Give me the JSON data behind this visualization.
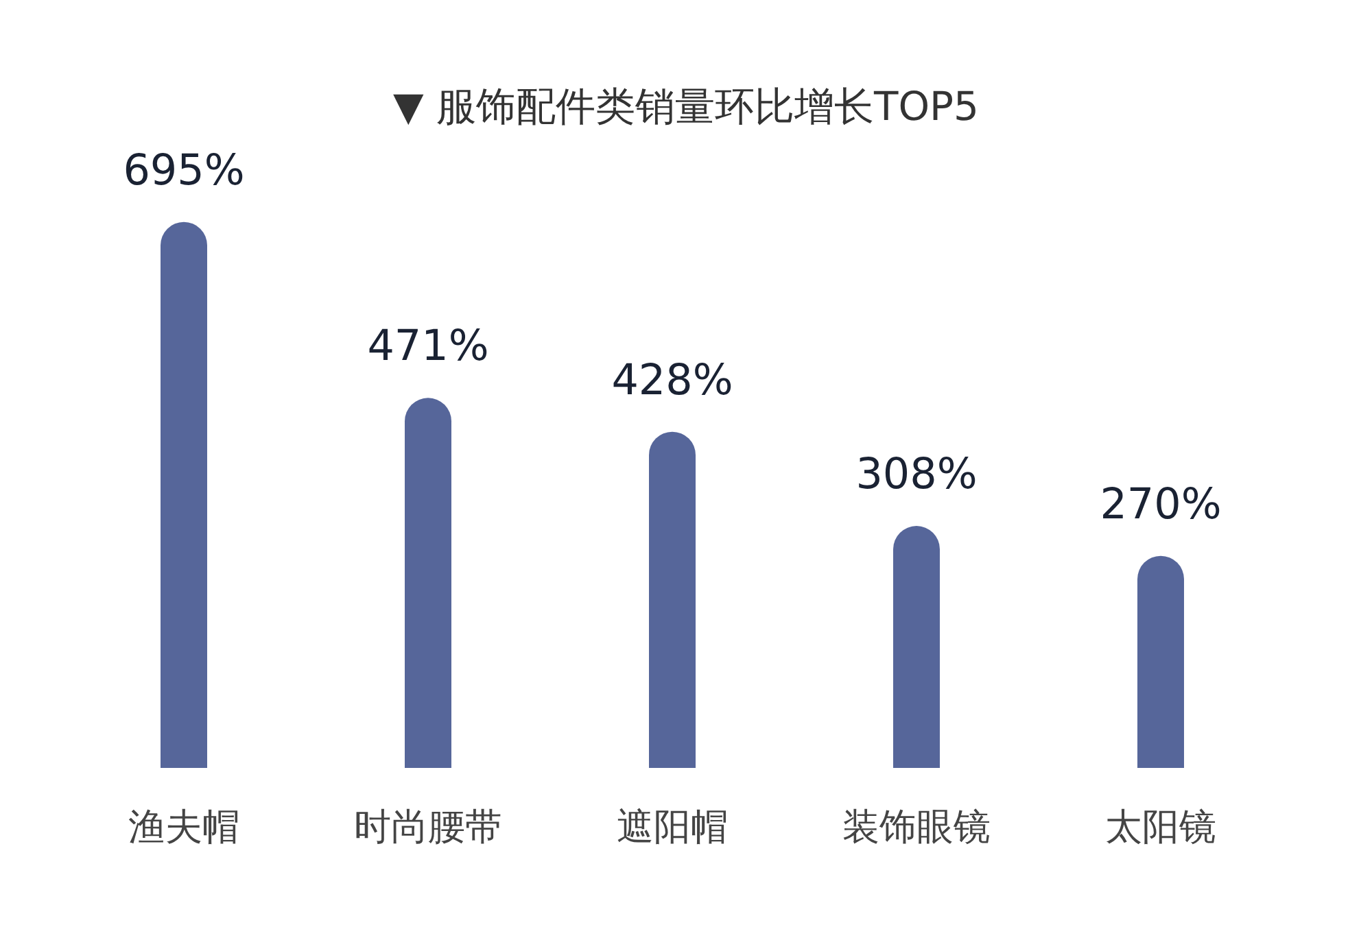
{
  "chart_data": {
    "type": "bar",
    "title": "▼ 服饰配件类销量环比增长TOP5",
    "categories": [
      "渔夫帽",
      "时尚腰带",
      "遮阳帽",
      "装饰眼镜",
      "太阳镜"
    ],
    "values": [
      695,
      471,
      428,
      308,
      270
    ],
    "value_labels": [
      "695%",
      "471%",
      "428%",
      "308%",
      "270%"
    ],
    "color": "#56669a",
    "grid": false
  }
}
